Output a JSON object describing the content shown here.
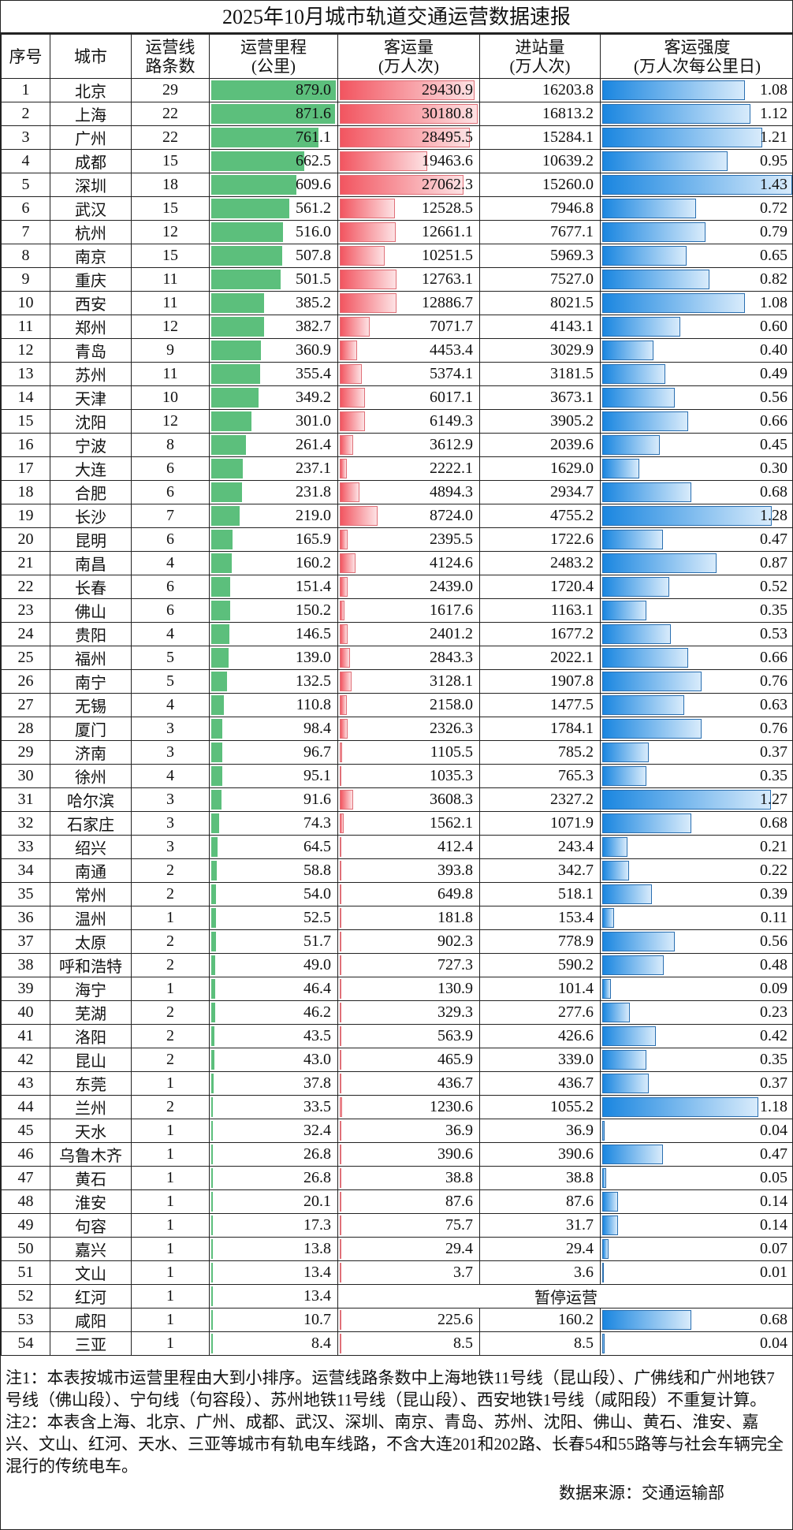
{
  "title": "2025年10月城市轨道交通运营数据速报",
  "headers": [
    "序号",
    "城市",
    "运营线\n路条数",
    "运营里程\n(公里)",
    "客运量\n(万人次)",
    "进站量\n(万人次)",
    "客运强度\n(万人次每公里日)"
  ],
  "bar_colors": {
    "mileage": "#5cbf7c",
    "passenger": "#f25560",
    "intensity": "#1a86e0"
  },
  "suspended_label": "暂停运营",
  "rows": [
    [
      "1",
      "北京",
      "29",
      "879.0",
      "29430.9",
      "16203.8",
      "1.08"
    ],
    [
      "2",
      "上海",
      "22",
      "871.6",
      "30180.8",
      "16813.2",
      "1.12"
    ],
    [
      "3",
      "广州",
      "22",
      "761.1",
      "28495.5",
      "15284.1",
      "1.21"
    ],
    [
      "4",
      "成都",
      "15",
      "662.5",
      "19463.6",
      "10639.2",
      "0.95"
    ],
    [
      "5",
      "深圳",
      "18",
      "609.6",
      "27062.3",
      "15260.0",
      "1.43"
    ],
    [
      "6",
      "武汉",
      "15",
      "561.2",
      "12528.5",
      "7946.8",
      "0.72"
    ],
    [
      "7",
      "杭州",
      "12",
      "516.0",
      "12661.1",
      "7677.1",
      "0.79"
    ],
    [
      "8",
      "南京",
      "15",
      "507.8",
      "10251.5",
      "5969.3",
      "0.65"
    ],
    [
      "9",
      "重庆",
      "11",
      "501.5",
      "12763.1",
      "7527.0",
      "0.82"
    ],
    [
      "10",
      "西安",
      "11",
      "385.2",
      "12886.7",
      "8021.5",
      "1.08"
    ],
    [
      "11",
      "郑州",
      "12",
      "382.7",
      "7071.7",
      "4143.1",
      "0.60"
    ],
    [
      "12",
      "青岛",
      "9",
      "360.9",
      "4453.4",
      "3029.9",
      "0.40"
    ],
    [
      "13",
      "苏州",
      "11",
      "355.4",
      "5374.1",
      "3181.5",
      "0.49"
    ],
    [
      "14",
      "天津",
      "10",
      "349.2",
      "6017.1",
      "3673.1",
      "0.56"
    ],
    [
      "15",
      "沈阳",
      "12",
      "301.0",
      "6149.3",
      "3905.2",
      "0.66"
    ],
    [
      "16",
      "宁波",
      "8",
      "261.4",
      "3612.9",
      "2039.6",
      "0.45"
    ],
    [
      "17",
      "大连",
      "6",
      "237.1",
      "2222.1",
      "1629.0",
      "0.30"
    ],
    [
      "18",
      "合肥",
      "6",
      "231.8",
      "4894.3",
      "2934.7",
      "0.68"
    ],
    [
      "19",
      "长沙",
      "7",
      "219.0",
      "8724.0",
      "4755.2",
      "1.28"
    ],
    [
      "20",
      "昆明",
      "6",
      "165.9",
      "2395.5",
      "1722.6",
      "0.47"
    ],
    [
      "21",
      "南昌",
      "4",
      "160.2",
      "4124.6",
      "2483.2",
      "0.87"
    ],
    [
      "22",
      "长春",
      "6",
      "151.4",
      "2439.0",
      "1720.4",
      "0.52"
    ],
    [
      "23",
      "佛山",
      "6",
      "150.2",
      "1617.6",
      "1163.1",
      "0.35"
    ],
    [
      "24",
      "贵阳",
      "4",
      "146.5",
      "2401.2",
      "1677.2",
      "0.53"
    ],
    [
      "25",
      "福州",
      "5",
      "139.0",
      "2843.3",
      "2022.1",
      "0.66"
    ],
    [
      "26",
      "南宁",
      "5",
      "132.5",
      "3128.1",
      "1907.8",
      "0.76"
    ],
    [
      "27",
      "无锡",
      "4",
      "110.8",
      "2158.0",
      "1477.5",
      "0.63"
    ],
    [
      "28",
      "厦门",
      "3",
      "98.4",
      "2326.3",
      "1784.1",
      "0.76"
    ],
    [
      "29",
      "济南",
      "3",
      "96.7",
      "1105.5",
      "785.2",
      "0.37"
    ],
    [
      "30",
      "徐州",
      "4",
      "95.1",
      "1035.3",
      "765.3",
      "0.35"
    ],
    [
      "31",
      "哈尔滨",
      "3",
      "91.6",
      "3608.3",
      "2327.2",
      "1.27"
    ],
    [
      "32",
      "石家庄",
      "3",
      "74.3",
      "1562.1",
      "1071.9",
      "0.68"
    ],
    [
      "33",
      "绍兴",
      "3",
      "64.5",
      "412.4",
      "243.4",
      "0.21"
    ],
    [
      "34",
      "南通",
      "2",
      "58.8",
      "393.8",
      "342.7",
      "0.22"
    ],
    [
      "35",
      "常州",
      "2",
      "54.0",
      "649.8",
      "518.1",
      "0.39"
    ],
    [
      "36",
      "温州",
      "1",
      "52.5",
      "181.8",
      "153.4",
      "0.11"
    ],
    [
      "37",
      "太原",
      "2",
      "51.7",
      "902.3",
      "778.9",
      "0.56"
    ],
    [
      "38",
      "呼和浩特",
      "2",
      "49.0",
      "727.3",
      "590.2",
      "0.48"
    ],
    [
      "39",
      "海宁",
      "1",
      "46.4",
      "130.9",
      "101.4",
      "0.09"
    ],
    [
      "40",
      "芜湖",
      "2",
      "46.2",
      "329.3",
      "277.6",
      "0.23"
    ],
    [
      "41",
      "洛阳",
      "2",
      "43.5",
      "563.9",
      "426.6",
      "0.42"
    ],
    [
      "42",
      "昆山",
      "2",
      "43.0",
      "465.9",
      "339.0",
      "0.35"
    ],
    [
      "43",
      "东莞",
      "1",
      "37.8",
      "436.7",
      "436.7",
      "0.37"
    ],
    [
      "44",
      "兰州",
      "2",
      "33.5",
      "1230.6",
      "1055.2",
      "1.18"
    ],
    [
      "45",
      "天水",
      "1",
      "32.4",
      "36.9",
      "36.9",
      "0.04"
    ],
    [
      "46",
      "乌鲁木齐",
      "1",
      "26.8",
      "390.6",
      "390.6",
      "0.47"
    ],
    [
      "47",
      "黄石",
      "1",
      "26.8",
      "38.8",
      "38.8",
      "0.05"
    ],
    [
      "48",
      "淮安",
      "1",
      "20.1",
      "87.6",
      "87.6",
      "0.14"
    ],
    [
      "49",
      "句容",
      "1",
      "17.3",
      "75.7",
      "31.7",
      "0.14"
    ],
    [
      "50",
      "嘉兴",
      "1",
      "13.8",
      "29.4",
      "29.4",
      "0.07"
    ],
    [
      "51",
      "文山",
      "1",
      "13.4",
      "3.7",
      "3.6",
      "0.01"
    ],
    [
      "52",
      "红河",
      "1",
      "13.4",
      null,
      null,
      null
    ],
    [
      "53",
      "咸阳",
      "1",
      "10.7",
      "225.6",
      "160.2",
      "0.68"
    ],
    [
      "54",
      "三亚",
      "1",
      "8.4",
      "8.5",
      "8.5",
      "0.04"
    ]
  ],
  "notes": {
    "note1": "注1：本表按城市运营里程由大到小排序。运营线路条数中上海地铁11号线（昆山段）、广佛线和广州地铁7号线（佛山段）、宁句线（句容段）、苏州地铁11号线（昆山段）、西安地铁1号线（咸阳段）不重复计算。",
    "note2": "注2：本表含上海、北京、广州、成都、武汉、深圳、南京、青岛、苏州、沈阳、佛山、黄石、淮安、嘉兴、文山、红河、天水、三亚等城市有轨电车线路，不含大连201和202路、长春54和55路等与社会车辆完全混行的传统电车。",
    "source": "数据来源：交通运输部"
  }
}
